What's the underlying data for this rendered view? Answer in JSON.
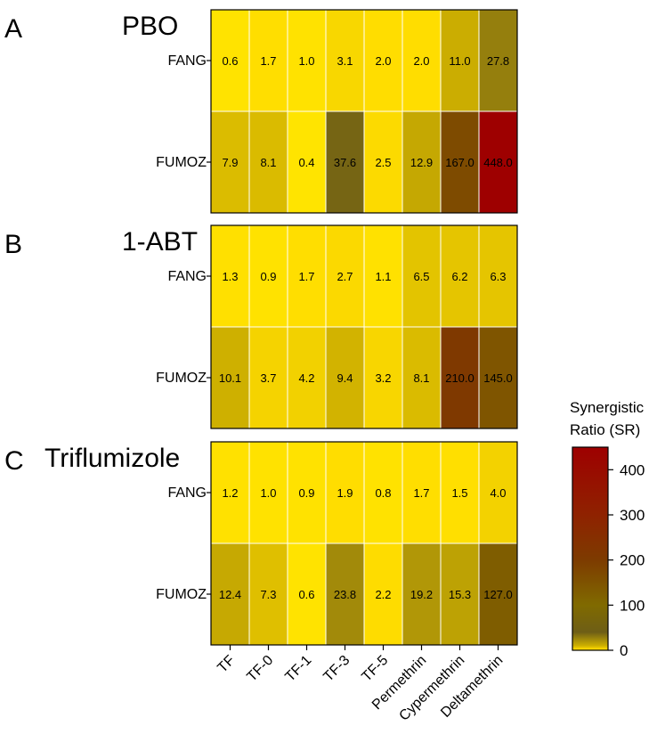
{
  "chart_data": {
    "type": "heatmap",
    "columns": [
      "TF",
      "TF-0",
      "TF-1",
      "TF-3",
      "TF-5",
      "Permethrin",
      "Cypermethrin",
      "Deltamethrin"
    ],
    "rows": [
      "FANG",
      "FUMOZ"
    ],
    "panels": [
      {
        "letter": "A",
        "title": "PBO",
        "values": [
          [
            0.6,
            1.7,
            1.0,
            3.1,
            2.0,
            2.0,
            11.0,
            27.8
          ],
          [
            7.9,
            8.1,
            0.4,
            37.6,
            2.5,
            12.9,
            167.0,
            448.0
          ]
        ],
        "labels": [
          [
            "0.6",
            "1.7",
            "1.0",
            "3.1",
            "2.0",
            "2.0",
            "11.0",
            "27.8"
          ],
          [
            "7.9",
            "8.1",
            "0.4",
            "37.6",
            "2.5",
            "12.9",
            "167.0",
            "448.0"
          ]
        ]
      },
      {
        "letter": "B",
        "title": "1-ABT",
        "values": [
          [
            1.3,
            0.9,
            1.7,
            2.7,
            1.1,
            6.5,
            6.2,
            6.3
          ],
          [
            10.1,
            3.7,
            4.2,
            9.4,
            3.2,
            8.1,
            210.0,
            145.0
          ]
        ],
        "labels": [
          [
            "1.3",
            "0.9",
            "1.7",
            "2.7",
            "1.1",
            "6.5",
            "6.2",
            "6.3"
          ],
          [
            "10.1",
            "3.7",
            "4.2",
            "9.4",
            "3.2",
            "8.1",
            "210.0",
            "145.0"
          ]
        ]
      },
      {
        "letter": "C",
        "title": "Triflumizole",
        "values": [
          [
            1.2,
            1.0,
            0.9,
            1.9,
            0.8,
            1.7,
            1.5,
            4.0
          ],
          [
            12.4,
            7.3,
            0.6,
            23.8,
            2.2,
            19.2,
            15.3,
            127.0
          ]
        ],
        "labels": [
          [
            "1.2",
            "1.0",
            "0.9",
            "1.9",
            "0.8",
            "1.7",
            "1.5",
            "4.0"
          ],
          [
            "12.4",
            "7.3",
            "0.6",
            "23.8",
            "2.2",
            "19.2",
            "15.3",
            "127.0"
          ]
        ]
      }
    ],
    "colorbar": {
      "title_lines": [
        "Synergistic",
        "Ratio (SR)"
      ],
      "range": [
        0,
        450
      ],
      "ticks": [
        0,
        100,
        200,
        300,
        400
      ],
      "tick_labels": [
        "0",
        "100",
        "200",
        "300",
        "400"
      ],
      "stops": [
        {
          "value": 0,
          "color": "#ffe600"
        },
        {
          "value": 2,
          "color": "#ffdd00"
        },
        {
          "value": 10,
          "color": "#ceb000"
        },
        {
          "value": 40,
          "color": "#6e5e16"
        },
        {
          "value": 100,
          "color": "#806a00"
        },
        {
          "value": 200,
          "color": "#7d3b00"
        },
        {
          "value": 300,
          "color": "#8f2200"
        },
        {
          "value": 450,
          "color": "#9e0000"
        }
      ]
    }
  }
}
